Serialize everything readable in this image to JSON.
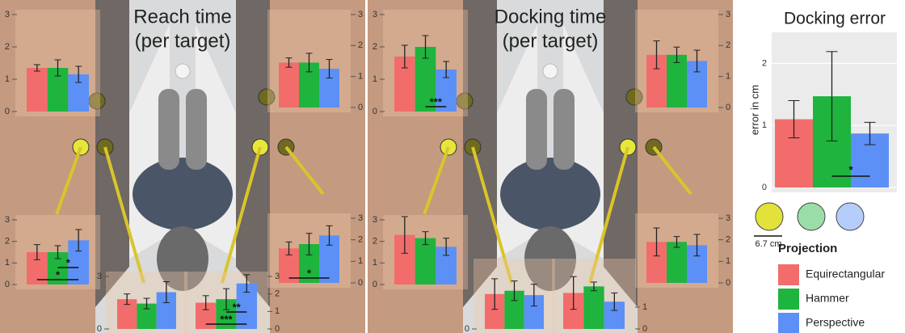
{
  "chart_data": [
    {
      "type": "bar-panel",
      "title": "Reach time",
      "subtitle": "(per target)",
      "subplots": [
        {
          "values": [
            1.35,
            1.35,
            1.15
          ],
          "errors": [
            0.1,
            0.25,
            0.25
          ],
          "ylim": [
            0,
            3
          ],
          "yticks": [
            0,
            1,
            2,
            3
          ],
          "significance": []
        },
        {
          "values": [
            1.45,
            1.45,
            1.25
          ],
          "errors": [
            0.15,
            0.3,
            0.3
          ],
          "ylim": [
            0,
            3
          ],
          "yticks": [
            0,
            1,
            2,
            3
          ],
          "significance": []
        },
        {
          "values": [
            1.5,
            1.5,
            2.05
          ],
          "errors": [
            0.35,
            0.3,
            0.5
          ],
          "ylim": [
            0,
            3
          ],
          "yticks": [
            0,
            1,
            2,
            3
          ],
          "significance": [
            {
              "label": "*",
              "between": [
                0,
                2
              ]
            },
            {
              "label": "*",
              "between": [
                1,
                2
              ]
            }
          ]
        },
        {
          "values": [
            1.6,
            1.8,
            2.2
          ],
          "errors": [
            0.3,
            0.5,
            0.45
          ],
          "ylim": [
            0,
            3
          ],
          "yticks": [
            0,
            1,
            2,
            3
          ],
          "significance": [
            {
              "label": "*",
              "between": [
                0,
                2
              ]
            }
          ]
        },
        {
          "values": [
            1.7,
            1.45,
            2.1
          ],
          "errors": [
            0.3,
            0.3,
            0.6
          ],
          "ylim": [
            0,
            3
          ],
          "yticks": [
            0,
            3
          ],
          "significance": []
        },
        {
          "values": [
            1.5,
            1.7,
            2.6
          ],
          "errors": [
            0.4,
            0.6,
            0.5
          ],
          "ylim": [
            0,
            3
          ],
          "yticks": [
            0,
            1,
            2,
            3
          ],
          "significance": [
            {
              "label": "***",
              "between": [
                0,
                2
              ]
            },
            {
              "label": "**",
              "between": [
                1,
                2
              ]
            }
          ]
        }
      ]
    },
    {
      "type": "bar-panel",
      "title": "Docking time",
      "subtitle": "(per target)",
      "subplots": [
        {
          "values": [
            1.7,
            2.0,
            1.3
          ],
          "errors": [
            0.35,
            0.35,
            0.25
          ],
          "ylim": [
            0,
            3
          ],
          "yticks": [
            0,
            1,
            2,
            3
          ],
          "significance": [
            {
              "label": "***",
              "between": [
                1,
                2
              ]
            }
          ]
        },
        {
          "values": [
            1.7,
            1.7,
            1.5
          ],
          "errors": [
            0.45,
            0.25,
            0.35
          ],
          "ylim": [
            0,
            3
          ],
          "yticks": [
            0,
            1,
            2,
            3
          ],
          "significance": []
        },
        {
          "values": [
            2.3,
            2.15,
            1.75
          ],
          "errors": [
            0.85,
            0.3,
            0.4
          ],
          "ylim": [
            0,
            3
          ],
          "yticks": [
            0,
            1,
            2,
            3
          ],
          "significance": []
        },
        {
          "values": [
            1.9,
            1.9,
            1.75
          ],
          "errors": [
            0.65,
            0.25,
            0.5
          ],
          "ylim": [
            0,
            3
          ],
          "yticks": [
            0,
            1,
            2,
            3
          ],
          "significance": []
        },
        {
          "values": [
            1.6,
            1.75,
            1.55
          ],
          "errors": [
            0.7,
            0.45,
            0.5
          ],
          "ylim": [
            0,
            3
          ],
          "yticks": [
            0
          ],
          "significance": []
        },
        {
          "values": [
            1.65,
            1.95,
            1.25
          ],
          "errors": [
            0.75,
            0.2,
            0.4
          ],
          "ylim": [
            0,
            3
          ],
          "yticks": [
            0,
            1
          ],
          "significance": []
        }
      ]
    },
    {
      "type": "bar",
      "title": "Docking error",
      "ylabel": "error in cm",
      "series": [
        {
          "name": "Equirectangular",
          "color": "#f36c6c",
          "values": [
            1.1
          ],
          "errors": [
            0.3
          ]
        },
        {
          "name": "Hammer",
          "color": "#1fb43e",
          "values": [
            1.47
          ],
          "errors": [
            0.72
          ]
        },
        {
          "name": "Perspective",
          "color": "#5c90f6",
          "values": [
            0.87
          ],
          "errors": [
            0.18
          ]
        }
      ],
      "ylim": [
        0,
        2.5
      ],
      "yticks": [
        0,
        1,
        2
      ],
      "grid": true,
      "significance": [
        {
          "label": "*",
          "between": [
            1,
            2
          ]
        }
      ],
      "scale_label": "6.7 cm",
      "legend_title": "Projection"
    }
  ]
}
